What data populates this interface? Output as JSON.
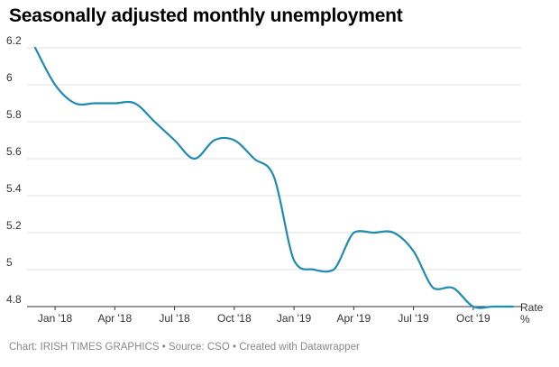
{
  "title": "Seasonally adjusted monthly unemployment",
  "footer": {
    "chart_credit": "Chart: IRISH TIMES GRAPHICS",
    "separator": "•",
    "source": "Source: CSO",
    "created": "Created with Datawrapper"
  },
  "colors": {
    "line": "#1d8cb0",
    "grid": "#e0e0e0",
    "tick_text": "#333333"
  },
  "chart_data": {
    "type": "line",
    "title": "Seasonally adjusted monthly unemployment",
    "xlabel": "",
    "ylabel": "",
    "series_label": [
      "Rate",
      "%"
    ],
    "ylim": [
      4.8,
      6.2
    ],
    "yticks": [
      4.8,
      5,
      5.2,
      5.4,
      5.6,
      5.8,
      6,
      6.2
    ],
    "ytick_labels": [
      "4.8",
      "5",
      "5.2",
      "5.4",
      "5.6",
      "5.8",
      "6",
      "6.2"
    ],
    "xticks": [
      {
        "month_index": 1,
        "label": "Jan '18"
      },
      {
        "month_index": 4,
        "label": "Apr '18"
      },
      {
        "month_index": 7,
        "label": "Jul '18"
      },
      {
        "month_index": 10,
        "label": "Oct '18"
      },
      {
        "month_index": 13,
        "label": "Jan '19"
      },
      {
        "month_index": 16,
        "label": "Apr '19"
      },
      {
        "month_index": 19,
        "label": "Jul '19"
      },
      {
        "month_index": 22,
        "label": "Oct '19"
      }
    ],
    "series": [
      {
        "name": "Rate",
        "months": [
          "Dec '17",
          "Jan '18",
          "Feb '18",
          "Mar '18",
          "Apr '18",
          "May '18",
          "Jun '18",
          "Jul '18",
          "Aug '18",
          "Sep '18",
          "Oct '18",
          "Nov '18",
          "Dec '18",
          "Jan '19",
          "Feb '19",
          "Mar '19",
          "Apr '19",
          "May '19",
          "Jun '19",
          "Jul '19",
          "Aug '19",
          "Sep '19",
          "Oct '19",
          "Nov '19",
          "Dec '19"
        ],
        "values": [
          6.2,
          6.0,
          5.9,
          5.9,
          5.9,
          5.9,
          5.8,
          5.7,
          5.6,
          5.7,
          5.7,
          5.6,
          5.5,
          5.05,
          5.0,
          5.0,
          5.2,
          5.2,
          5.2,
          5.1,
          4.9,
          4.9,
          4.8,
          4.8,
          4.8
        ]
      }
    ]
  }
}
